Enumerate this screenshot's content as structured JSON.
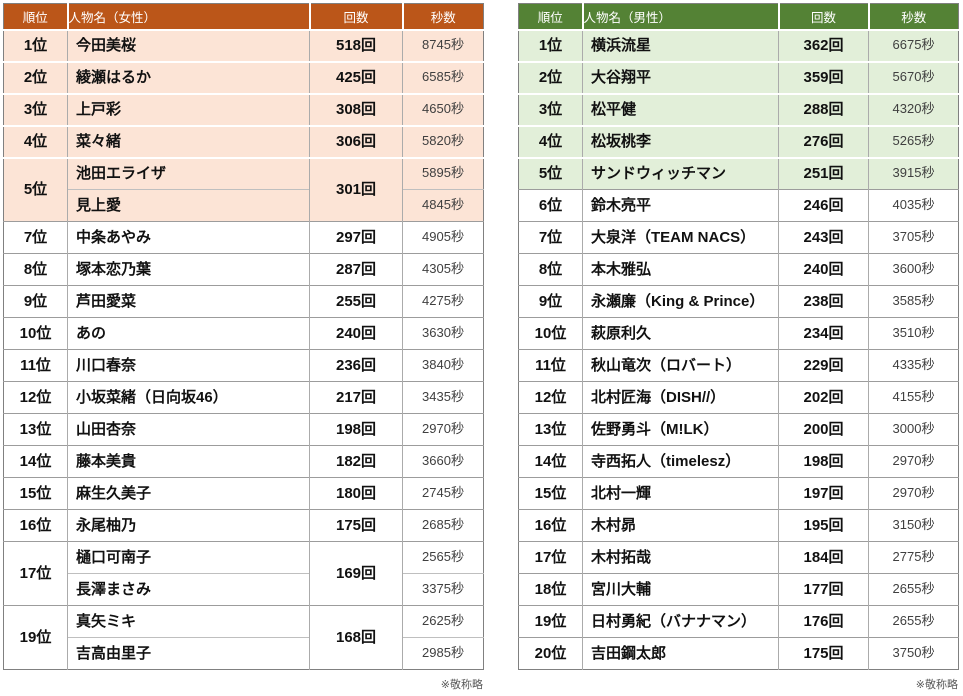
{
  "tables": [
    {
      "id": "female",
      "headers": [
        "順位",
        "人物名（女性）",
        "回数",
        "秒数"
      ],
      "accent_color": "#BB5619",
      "highlight_color": "#FCE4D6",
      "note": "※敬称略",
      "groups": [
        {
          "rank": "1位",
          "count": "518回",
          "highlight": true,
          "entries": [
            {
              "name": "今田美桜",
              "seconds": "8745秒"
            }
          ]
        },
        {
          "rank": "2位",
          "count": "425回",
          "highlight": true,
          "entries": [
            {
              "name": "綾瀬はるか",
              "seconds": "6585秒"
            }
          ]
        },
        {
          "rank": "3位",
          "count": "308回",
          "highlight": true,
          "entries": [
            {
              "name": "上戸彩",
              "seconds": "4650秒"
            }
          ]
        },
        {
          "rank": "4位",
          "count": "306回",
          "highlight": true,
          "entries": [
            {
              "name": "菜々緒",
              "seconds": "5820秒"
            }
          ]
        },
        {
          "rank": "5位",
          "count": "301回",
          "highlight": true,
          "entries": [
            {
              "name": "池田エライザ",
              "seconds": "5895秒"
            },
            {
              "name": "見上愛",
              "seconds": "4845秒"
            }
          ]
        },
        {
          "rank": "7位",
          "count": "297回",
          "highlight": false,
          "entries": [
            {
              "name": "中条あやみ",
              "seconds": "4905秒"
            }
          ]
        },
        {
          "rank": "8位",
          "count": "287回",
          "highlight": false,
          "entries": [
            {
              "name": "塚本恋乃葉",
              "seconds": "4305秒"
            }
          ]
        },
        {
          "rank": "9位",
          "count": "255回",
          "highlight": false,
          "entries": [
            {
              "name": "芦田愛菜",
              "seconds": "4275秒"
            }
          ]
        },
        {
          "rank": "10位",
          "count": "240回",
          "highlight": false,
          "entries": [
            {
              "name": "あの",
              "seconds": "3630秒"
            }
          ]
        },
        {
          "rank": "11位",
          "count": "236回",
          "highlight": false,
          "entries": [
            {
              "name": "川口春奈",
              "seconds": "3840秒"
            }
          ]
        },
        {
          "rank": "12位",
          "count": "217回",
          "highlight": false,
          "entries": [
            {
              "name": "小坂菜緒（日向坂46）",
              "seconds": "3435秒"
            }
          ]
        },
        {
          "rank": "13位",
          "count": "198回",
          "highlight": false,
          "entries": [
            {
              "name": "山田杏奈",
              "seconds": "2970秒"
            }
          ]
        },
        {
          "rank": "14位",
          "count": "182回",
          "highlight": false,
          "entries": [
            {
              "name": "藤本美貴",
              "seconds": "3660秒"
            }
          ]
        },
        {
          "rank": "15位",
          "count": "180回",
          "highlight": false,
          "entries": [
            {
              "name": "麻生久美子",
              "seconds": "2745秒"
            }
          ]
        },
        {
          "rank": "16位",
          "count": "175回",
          "highlight": false,
          "entries": [
            {
              "name": "永尾柚乃",
              "seconds": "2685秒"
            }
          ]
        },
        {
          "rank": "17位",
          "count": "169回",
          "highlight": false,
          "entries": [
            {
              "name": "樋口可南子",
              "seconds": "2565秒"
            },
            {
              "name": "長澤まさみ",
              "seconds": "3375秒"
            }
          ]
        },
        {
          "rank": "19位",
          "count": "168回",
          "highlight": false,
          "entries": [
            {
              "name": "真矢ミキ",
              "seconds": "2625秒"
            },
            {
              "name": "吉高由里子",
              "seconds": "2985秒"
            }
          ]
        }
      ]
    },
    {
      "id": "male",
      "headers": [
        "順位",
        "人物名（男性）",
        "回数",
        "秒数"
      ],
      "accent_color": "#548235",
      "highlight_color": "#E2EFD9",
      "note": "※敬称略",
      "groups": [
        {
          "rank": "1位",
          "count": "362回",
          "highlight": true,
          "entries": [
            {
              "name": "横浜流星",
              "seconds": "6675秒"
            }
          ]
        },
        {
          "rank": "2位",
          "count": "359回",
          "highlight": true,
          "entries": [
            {
              "name": "大谷翔平",
              "seconds": "5670秒"
            }
          ]
        },
        {
          "rank": "3位",
          "count": "288回",
          "highlight": true,
          "entries": [
            {
              "name": "松平健",
              "seconds": "4320秒"
            }
          ]
        },
        {
          "rank": "4位",
          "count": "276回",
          "highlight": true,
          "entries": [
            {
              "name": "松坂桃李",
              "seconds": "5265秒"
            }
          ]
        },
        {
          "rank": "5位",
          "count": "251回",
          "highlight": true,
          "entries": [
            {
              "name": "サンドウィッチマン",
              "seconds": "3915秒"
            }
          ]
        },
        {
          "rank": "6位",
          "count": "246回",
          "highlight": false,
          "entries": [
            {
              "name": "鈴木亮平",
              "seconds": "4035秒"
            }
          ]
        },
        {
          "rank": "7位",
          "count": "243回",
          "highlight": false,
          "entries": [
            {
              "name": "大泉洋（TEAM NACS）",
              "seconds": "3705秒"
            }
          ]
        },
        {
          "rank": "8位",
          "count": "240回",
          "highlight": false,
          "entries": [
            {
              "name": "本木雅弘",
              "seconds": "3600秒"
            }
          ]
        },
        {
          "rank": "9位",
          "count": "238回",
          "highlight": false,
          "entries": [
            {
              "name": "永瀬廉（King & Prince）",
              "seconds": "3585秒"
            }
          ]
        },
        {
          "rank": "10位",
          "count": "234回",
          "highlight": false,
          "entries": [
            {
              "name": "萩原利久",
              "seconds": "3510秒"
            }
          ]
        },
        {
          "rank": "11位",
          "count": "229回",
          "highlight": false,
          "entries": [
            {
              "name": "秋山竜次（ロバート）",
              "seconds": "4335秒"
            }
          ]
        },
        {
          "rank": "12位",
          "count": "202回",
          "highlight": false,
          "entries": [
            {
              "name": "北村匠海（DISH//）",
              "seconds": "4155秒"
            }
          ]
        },
        {
          "rank": "13位",
          "count": "200回",
          "highlight": false,
          "entries": [
            {
              "name": "佐野勇斗（M!LK）",
              "seconds": "3000秒"
            }
          ]
        },
        {
          "rank": "14位",
          "count": "198回",
          "highlight": false,
          "entries": [
            {
              "name": "寺西拓人（timelesz）",
              "seconds": "2970秒"
            }
          ]
        },
        {
          "rank": "15位",
          "count": "197回",
          "highlight": false,
          "entries": [
            {
              "name": "北村一輝",
              "seconds": "2970秒"
            }
          ]
        },
        {
          "rank": "16位",
          "count": "195回",
          "highlight": false,
          "entries": [
            {
              "name": "木村昴",
              "seconds": "3150秒"
            }
          ]
        },
        {
          "rank": "17位",
          "count": "184回",
          "highlight": false,
          "entries": [
            {
              "name": "木村拓哉",
              "seconds": "2775秒"
            }
          ]
        },
        {
          "rank": "18位",
          "count": "177回",
          "highlight": false,
          "entries": [
            {
              "name": "宮川大輔",
              "seconds": "2655秒"
            }
          ]
        },
        {
          "rank": "19位",
          "count": "176回",
          "highlight": false,
          "entries": [
            {
              "name": "日村勇紀（バナナマン）",
              "seconds": "2655秒"
            }
          ]
        },
        {
          "rank": "20位",
          "count": "175回",
          "highlight": false,
          "entries": [
            {
              "name": "吉田鋼太郎",
              "seconds": "3750秒"
            }
          ]
        }
      ]
    }
  ]
}
